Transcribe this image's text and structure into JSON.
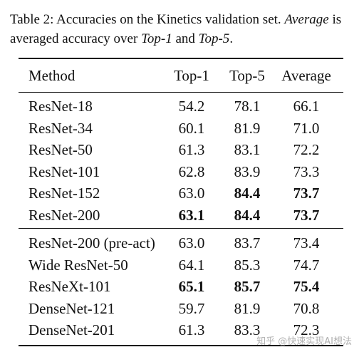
{
  "caption": {
    "prefix": "Table 2:  Accuracies on the Kinetics validation set.",
    "em1": "Average",
    "mid": "is averaged accuracy over",
    "em2": "Top-1",
    "and": "and",
    "em3": "Top-5",
    "end": "."
  },
  "table": {
    "headers": [
      "Method",
      "Top-1",
      "Top-5",
      "Average"
    ],
    "group1": [
      {
        "method": "ResNet-18",
        "top1": "54.2",
        "top5": "78.1",
        "avg": "66.1",
        "bold": []
      },
      {
        "method": "ResNet-34",
        "top1": "60.1",
        "top5": "81.9",
        "avg": "71.0",
        "bold": []
      },
      {
        "method": "ResNet-50",
        "top1": "61.3",
        "top5": "83.1",
        "avg": "72.2",
        "bold": []
      },
      {
        "method": "ResNet-101",
        "top1": "62.8",
        "top5": "83.9",
        "avg": "73.3",
        "bold": []
      },
      {
        "method": "ResNet-152",
        "top1": "63.0",
        "top5": "84.4",
        "avg": "73.7",
        "bold": [
          "top5",
          "avg"
        ]
      },
      {
        "method": "ResNet-200",
        "top1": "63.1",
        "top5": "84.4",
        "avg": "73.7",
        "bold": [
          "top1",
          "top5",
          "avg"
        ]
      }
    ],
    "group2": [
      {
        "method": "ResNet-200 (pre-act)",
        "top1": "63.0",
        "top5": "83.7",
        "avg": "73.4",
        "bold": []
      },
      {
        "method": "Wide ResNet-50",
        "top1": "64.1",
        "top5": "85.3",
        "avg": "74.7",
        "bold": []
      },
      {
        "method": "ResNeXt-101",
        "top1": "65.1",
        "top5": "85.7",
        "avg": "75.4",
        "bold": [
          "top1",
          "top5",
          "avg"
        ]
      },
      {
        "method": "DenseNet-121",
        "top1": "59.7",
        "top5": "81.9",
        "avg": "70.8",
        "bold": []
      },
      {
        "method": "DenseNet-201",
        "top1": "61.3",
        "top5": "83.3",
        "avg": "72.3",
        "bold": []
      }
    ]
  },
  "watermark": "知乎 @快速实现AI想法"
}
